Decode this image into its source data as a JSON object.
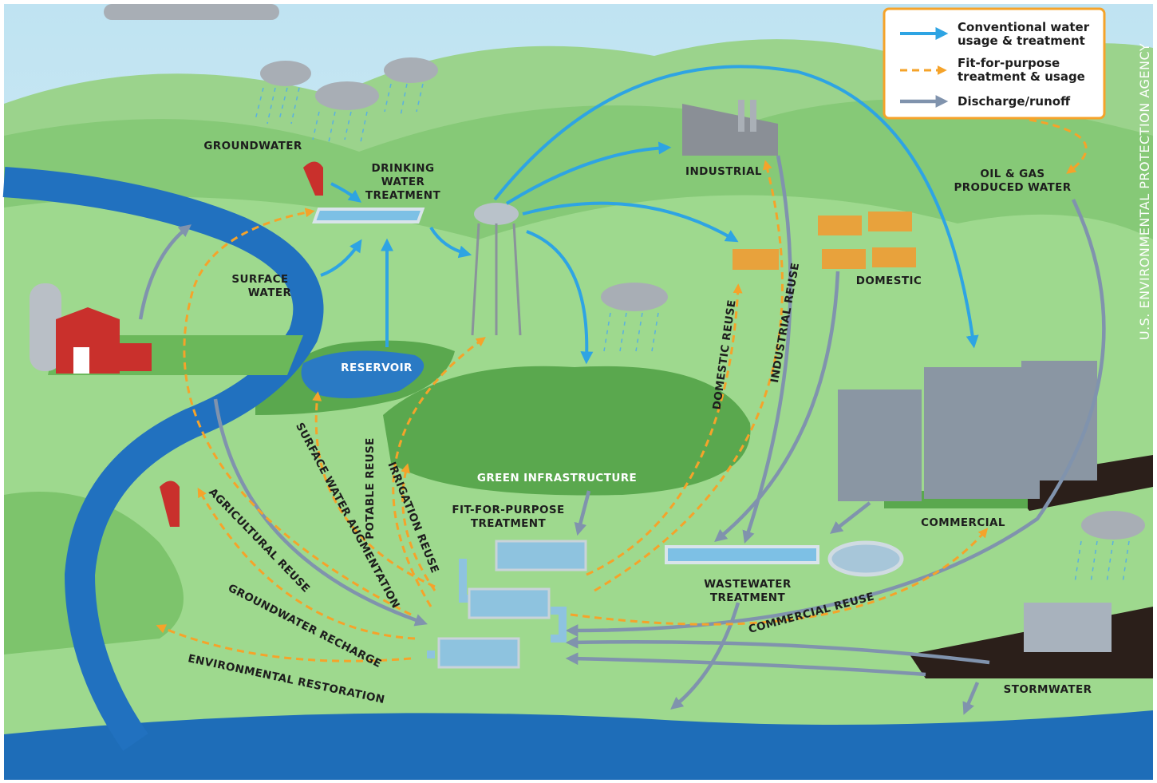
{
  "legend": [
    {
      "lines": [
        "Conventional water",
        "usage & treatment"
      ]
    },
    {
      "lines": [
        "Fit-for-purpose",
        "treatment & usage"
      ]
    },
    {
      "lines": [
        "Discharge/runoff"
      ]
    }
  ],
  "attribution": "U.S. ENVIRONMENTAL PROTECTION AGENCY",
  "places": [
    {
      "lines": [
        "GROUNDWATER"
      ]
    },
    {
      "lines": [
        "DRINKING",
        "WATER",
        "TREATMENT"
      ]
    },
    {
      "lines": [
        "SURFACE",
        "WATER"
      ]
    },
    {
      "lines": [
        "RESERVOIR"
      ]
    },
    {
      "lines": [
        "INDUSTRIAL"
      ]
    },
    {
      "lines": [
        "OIL & GAS",
        "PRODUCED WATER"
      ]
    },
    {
      "lines": [
        "DOMESTIC"
      ]
    },
    {
      "lines": [
        "GREEN INFRASTRUCTURE"
      ]
    },
    {
      "lines": [
        "FIT-FOR-PURPOSE",
        "TREATMENT"
      ]
    },
    {
      "lines": [
        "WASTEWATER",
        "TREATMENT"
      ]
    },
    {
      "lines": [
        "COMMERCIAL"
      ]
    },
    {
      "lines": [
        "STORMWATER"
      ]
    }
  ],
  "reuse_labels": [
    "DOMESTIC REUSE",
    "INDUSTRIAL REUSE",
    "POTABLE REUSE",
    "IRRIGATION REUSE",
    "SURFACE WATER AUGMENTATION",
    "AGRICULTURAL REUSE",
    "GROUNDWATER RECHARGE",
    "ENVIRONMENTAL RESTORATION",
    "COMMERCIAL REUSE"
  ]
}
